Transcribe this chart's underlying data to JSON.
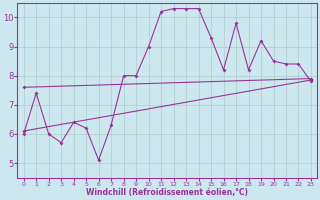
{
  "title": "",
  "xlabel": "Windchill (Refroidissement éolien,°C)",
  "ylabel": "",
  "bg_color": "#cce8ee",
  "grid_color": "#aacccc",
  "line_color": "#993399",
  "xlim": [
    -0.5,
    23.5
  ],
  "ylim": [
    4.5,
    10.5
  ],
  "xticks": [
    0,
    1,
    2,
    3,
    4,
    5,
    6,
    7,
    8,
    9,
    10,
    11,
    12,
    13,
    14,
    15,
    16,
    17,
    18,
    19,
    20,
    21,
    22,
    23
  ],
  "yticks": [
    5,
    6,
    7,
    8,
    9,
    10
  ],
  "main_x": [
    0,
    1,
    2,
    3,
    4,
    5,
    6,
    7,
    8,
    9,
    10,
    11,
    12,
    13,
    14,
    15,
    16,
    17,
    18,
    19,
    20,
    21,
    22,
    23
  ],
  "main_y": [
    6.0,
    7.4,
    6.0,
    5.7,
    6.4,
    6.2,
    5.1,
    6.3,
    8.0,
    8.0,
    9.0,
    10.2,
    10.3,
    10.3,
    10.3,
    9.3,
    8.2,
    9.8,
    8.2,
    9.2,
    8.5,
    8.4,
    8.4,
    7.8
  ],
  "trend1_x": [
    0,
    23
  ],
  "trend1_y": [
    7.6,
    7.9
  ],
  "trend2_x": [
    0,
    23
  ],
  "trend2_y": [
    6.1,
    7.85
  ],
  "marker": "D",
  "markersize": 2.0,
  "linewidth": 0.8,
  "tick_fontsize_x": 4.5,
  "tick_fontsize_y": 6.0,
  "xlabel_fontsize": 5.5
}
